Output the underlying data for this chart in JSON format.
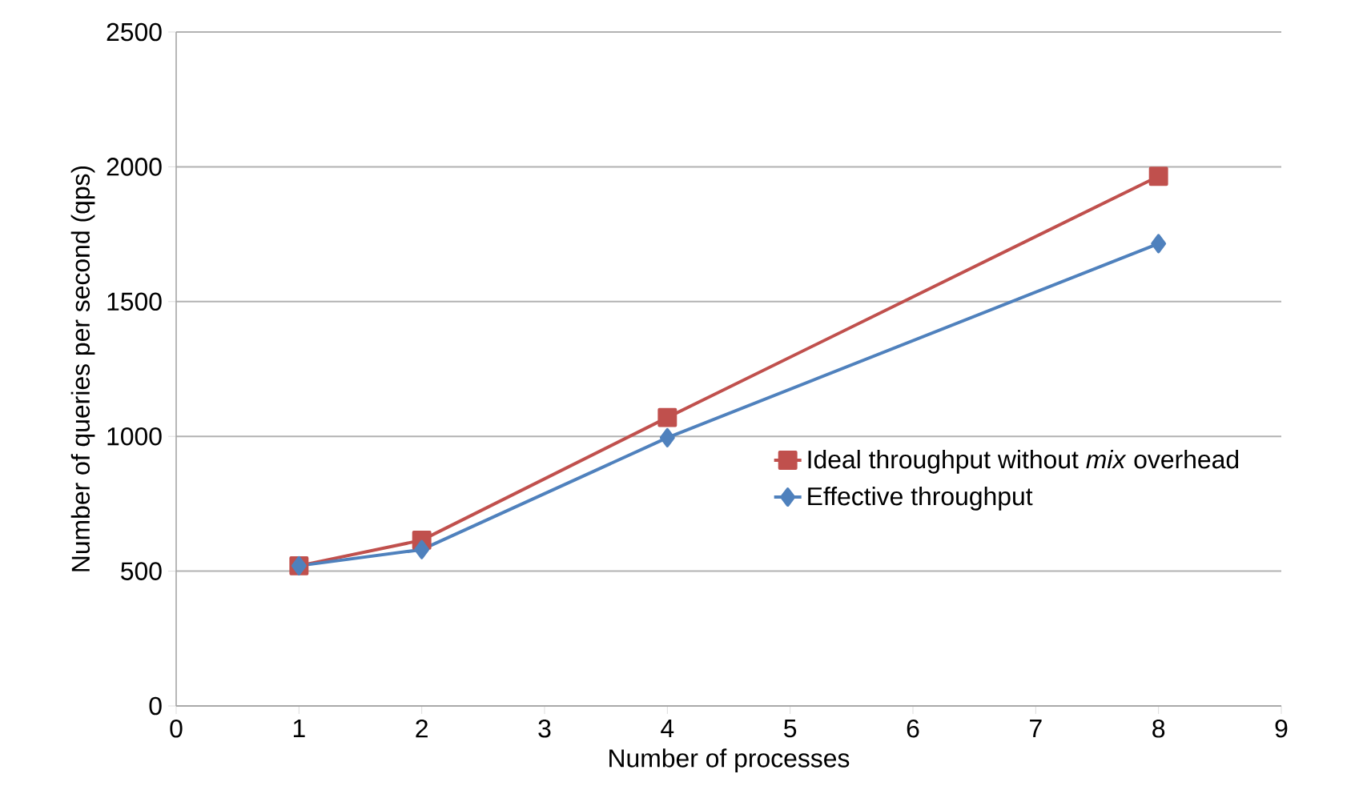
{
  "chart_data": {
    "type": "line",
    "xlabel": "Number of processes",
    "ylabel": "Number of queries per second (qps)",
    "x": [
      1,
      2,
      4,
      8
    ],
    "series": [
      {
        "name": "Ideal throughput without *mix* overhead",
        "color": "#c0504d",
        "marker": "square",
        "values": [
          520,
          615,
          1070,
          1965
        ]
      },
      {
        "name": "Effective throughput",
        "color": "#4f81bd",
        "marker": "diamond",
        "values": [
          520,
          580,
          995,
          1715
        ]
      }
    ],
    "xlim": [
      0,
      9
    ],
    "xticks": [
      0,
      1,
      2,
      3,
      4,
      5,
      6,
      7,
      8,
      9
    ],
    "ylim": [
      0,
      2500
    ],
    "yticks": [
      0,
      500,
      1000,
      1500,
      2000,
      2500
    ],
    "grid": "y",
    "legend": "right",
    "line_style": "solid"
  }
}
